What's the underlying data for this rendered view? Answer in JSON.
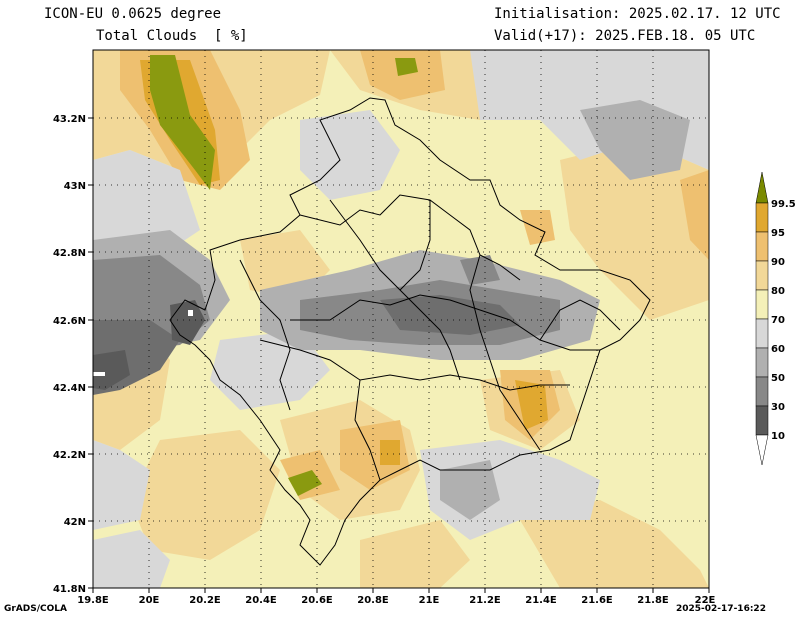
{
  "header": {
    "model": "ICON-EU 0.0625 degree",
    "field": "Total Clouds  [ %]",
    "init": "Initialisation: 2025.02.17. 12 UTC",
    "valid": "Valid(+17): 2025.FEB.18. 05 UTC"
  },
  "axes": {
    "lat_ticks": [
      "43.2N",
      "43N",
      "42.8N",
      "42.6N",
      "42.4N",
      "42.2N",
      "42N",
      "41.8N"
    ],
    "lon_ticks": [
      "19.8E",
      "20E",
      "20.2E",
      "20.4E",
      "20.6E",
      "20.8E",
      "21E",
      "21.2E",
      "21.4E",
      "21.6E",
      "21.8E",
      "22E"
    ]
  },
  "colorbar": {
    "labels": [
      "99.5",
      "95",
      "90",
      "80",
      "70",
      "60",
      "50",
      "30",
      "10"
    ],
    "colors": [
      "#7a8a00",
      "#e0a830",
      "#eec070",
      "#f2d898",
      "#f4f0b8",
      "#d8d8d8",
      "#b0b0b0",
      "#888888",
      "#5a5a5a",
      "#ffffff"
    ]
  },
  "footer": {
    "left": "GrADS/COLA",
    "right": "2025-02-17-16:22"
  }
}
